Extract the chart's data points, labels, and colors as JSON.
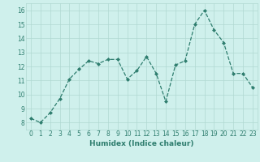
{
  "x": [
    0,
    1,
    2,
    3,
    4,
    5,
    6,
    7,
    8,
    9,
    10,
    11,
    12,
    13,
    14,
    15,
    16,
    17,
    18,
    19,
    20,
    21,
    22,
    23
  ],
  "y": [
    8.3,
    8.0,
    8.7,
    9.7,
    11.1,
    11.8,
    12.4,
    12.2,
    12.5,
    12.5,
    11.1,
    11.7,
    12.7,
    11.5,
    9.5,
    12.1,
    12.4,
    15.0,
    16.0,
    14.6,
    13.7,
    11.5,
    11.5,
    10.5
  ],
  "line_color": "#2e7d6e",
  "marker": "D",
  "marker_size": 2.0,
  "bg_color": "#cff0ec",
  "grid_color": "#b0d8d2",
  "xlabel": "Humidex (Indice chaleur)",
  "xlim": [
    -0.5,
    23.5
  ],
  "ylim": [
    7.5,
    16.5
  ],
  "yticks": [
    8,
    9,
    10,
    11,
    12,
    13,
    14,
    15,
    16
  ],
  "xticks": [
    0,
    1,
    2,
    3,
    4,
    5,
    6,
    7,
    8,
    9,
    10,
    11,
    12,
    13,
    14,
    15,
    16,
    17,
    18,
    19,
    20,
    21,
    22,
    23
  ],
  "xlabel_fontsize": 6.5,
  "tick_fontsize": 5.5,
  "label_color": "#2e7d6e",
  "linewidth": 0.9
}
